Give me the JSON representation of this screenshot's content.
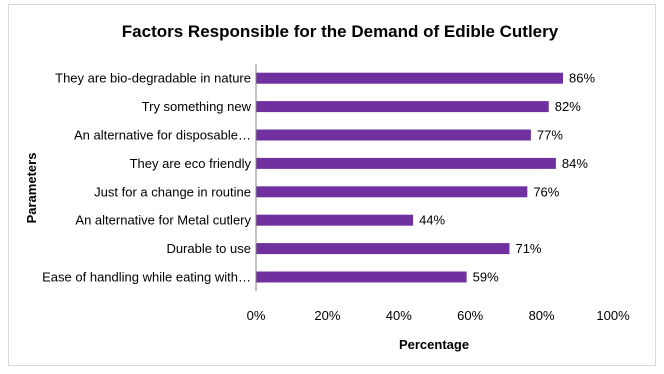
{
  "chart_data": {
    "type": "bar",
    "orientation": "horizontal",
    "title": "Factors Responsible for the Demand of Edible Cutlery",
    "xlabel": "Percentage",
    "ylabel": "Parameters",
    "xlim": [
      0,
      100
    ],
    "x_ticks": [
      "0%",
      "20%",
      "40%",
      "60%",
      "80%",
      "100%"
    ],
    "bar_color": "#7030a0",
    "grid": false,
    "legend": "none",
    "categories": [
      "They are bio-degradable in nature",
      "Try something new",
      "An alternative for disposable…",
      "They are eco friendly",
      "Just for a change in routine",
      "An alternative for Metal cutlery",
      "Durable to use",
      "Ease of handling while eating with…"
    ],
    "values": [
      86,
      82,
      77,
      84,
      76,
      44,
      71,
      59
    ],
    "value_labels": [
      "86%",
      "82%",
      "77%",
      "84%",
      "76%",
      "44%",
      "71%",
      "59%"
    ]
  }
}
